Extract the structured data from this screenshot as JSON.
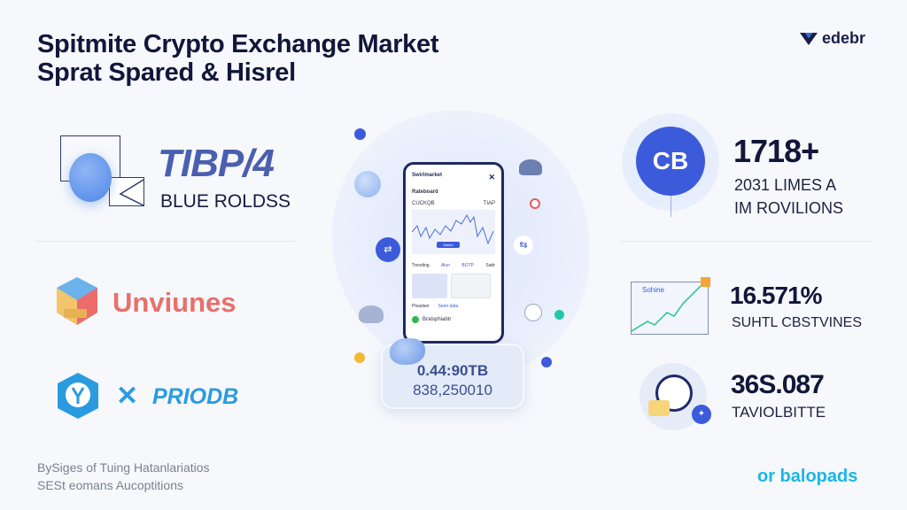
{
  "header": {
    "title_line1": "Spitmite Crypto Exchange Market",
    "title_line2": "Sprat Spared & Hisrel",
    "brand": "edebr"
  },
  "left": {
    "stat1": {
      "value": "TIBP/4",
      "label": "BLUE ROLDSS"
    },
    "logo2": {
      "name": "Unviunes",
      "color": "#e8706c"
    },
    "logo3": {
      "name": "PRIODB",
      "color": "#2a9be0"
    }
  },
  "center": {
    "phone": {
      "app_name": "Swirlmarket",
      "section": "Rateboard",
      "pair": "CUCKQB",
      "price": "TIAP",
      "button": "Watch",
      "tabs": [
        "Trending",
        "Alun",
        "BOTP",
        "Sattr"
      ],
      "list_label": "Pleadset",
      "list_link": "Seen data",
      "row_name": "Bratsphiabtr"
    },
    "card": {
      "line1": "0.44:90TB",
      "line2": "838,250010"
    }
  },
  "right": {
    "stat1": {
      "badge": "CB",
      "value": "1718+",
      "label_line1": "2031 LIMES A",
      "label_line2": "IM ROVILIONS",
      "color": "#3b5bdb"
    },
    "stat2": {
      "chart_label": "Sohine",
      "value": "16.571%",
      "label": "SUHTL CBSTVINES"
    },
    "stat3": {
      "value": "36S.087",
      "label": "TAVIOLBITTE"
    }
  },
  "footer": {
    "line1": "BySiges of Tuing Hatanlariatios",
    "line2": "SESt eomans Aucoptitions",
    "cta": "or balopads"
  }
}
